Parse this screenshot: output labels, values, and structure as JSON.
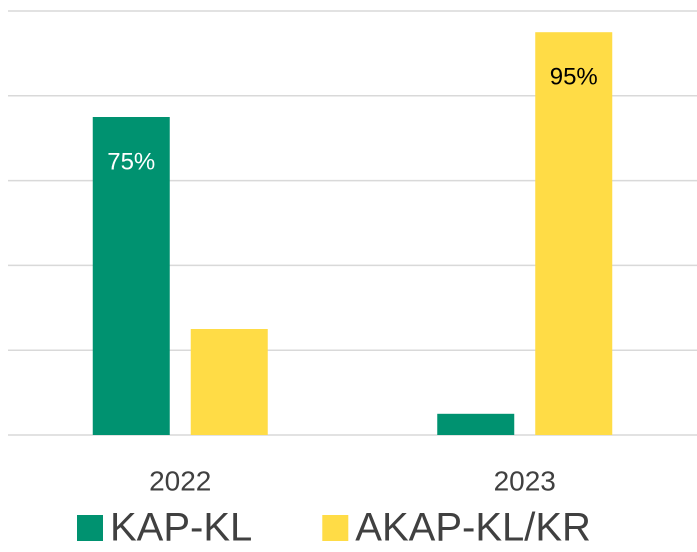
{
  "chart_data": {
    "type": "bar",
    "categories": [
      "2022",
      "2023"
    ],
    "series": [
      {
        "name": "KAP-KL",
        "color": "#009270",
        "values": [
          75,
          5
        ],
        "value_labels": [
          "75%",
          null
        ],
        "label_color": "#ffffff"
      },
      {
        "name": "AKAP-KL/KR",
        "color": "#ffdc46",
        "values": [
          25,
          95
        ],
        "value_labels": [
          null,
          "95%"
        ],
        "label_color": "#000000"
      }
    ],
    "ylim": [
      0,
      100
    ],
    "yticks": [
      0,
      20,
      40,
      60,
      80,
      100
    ],
    "grid": true,
    "legend": "bottom"
  }
}
